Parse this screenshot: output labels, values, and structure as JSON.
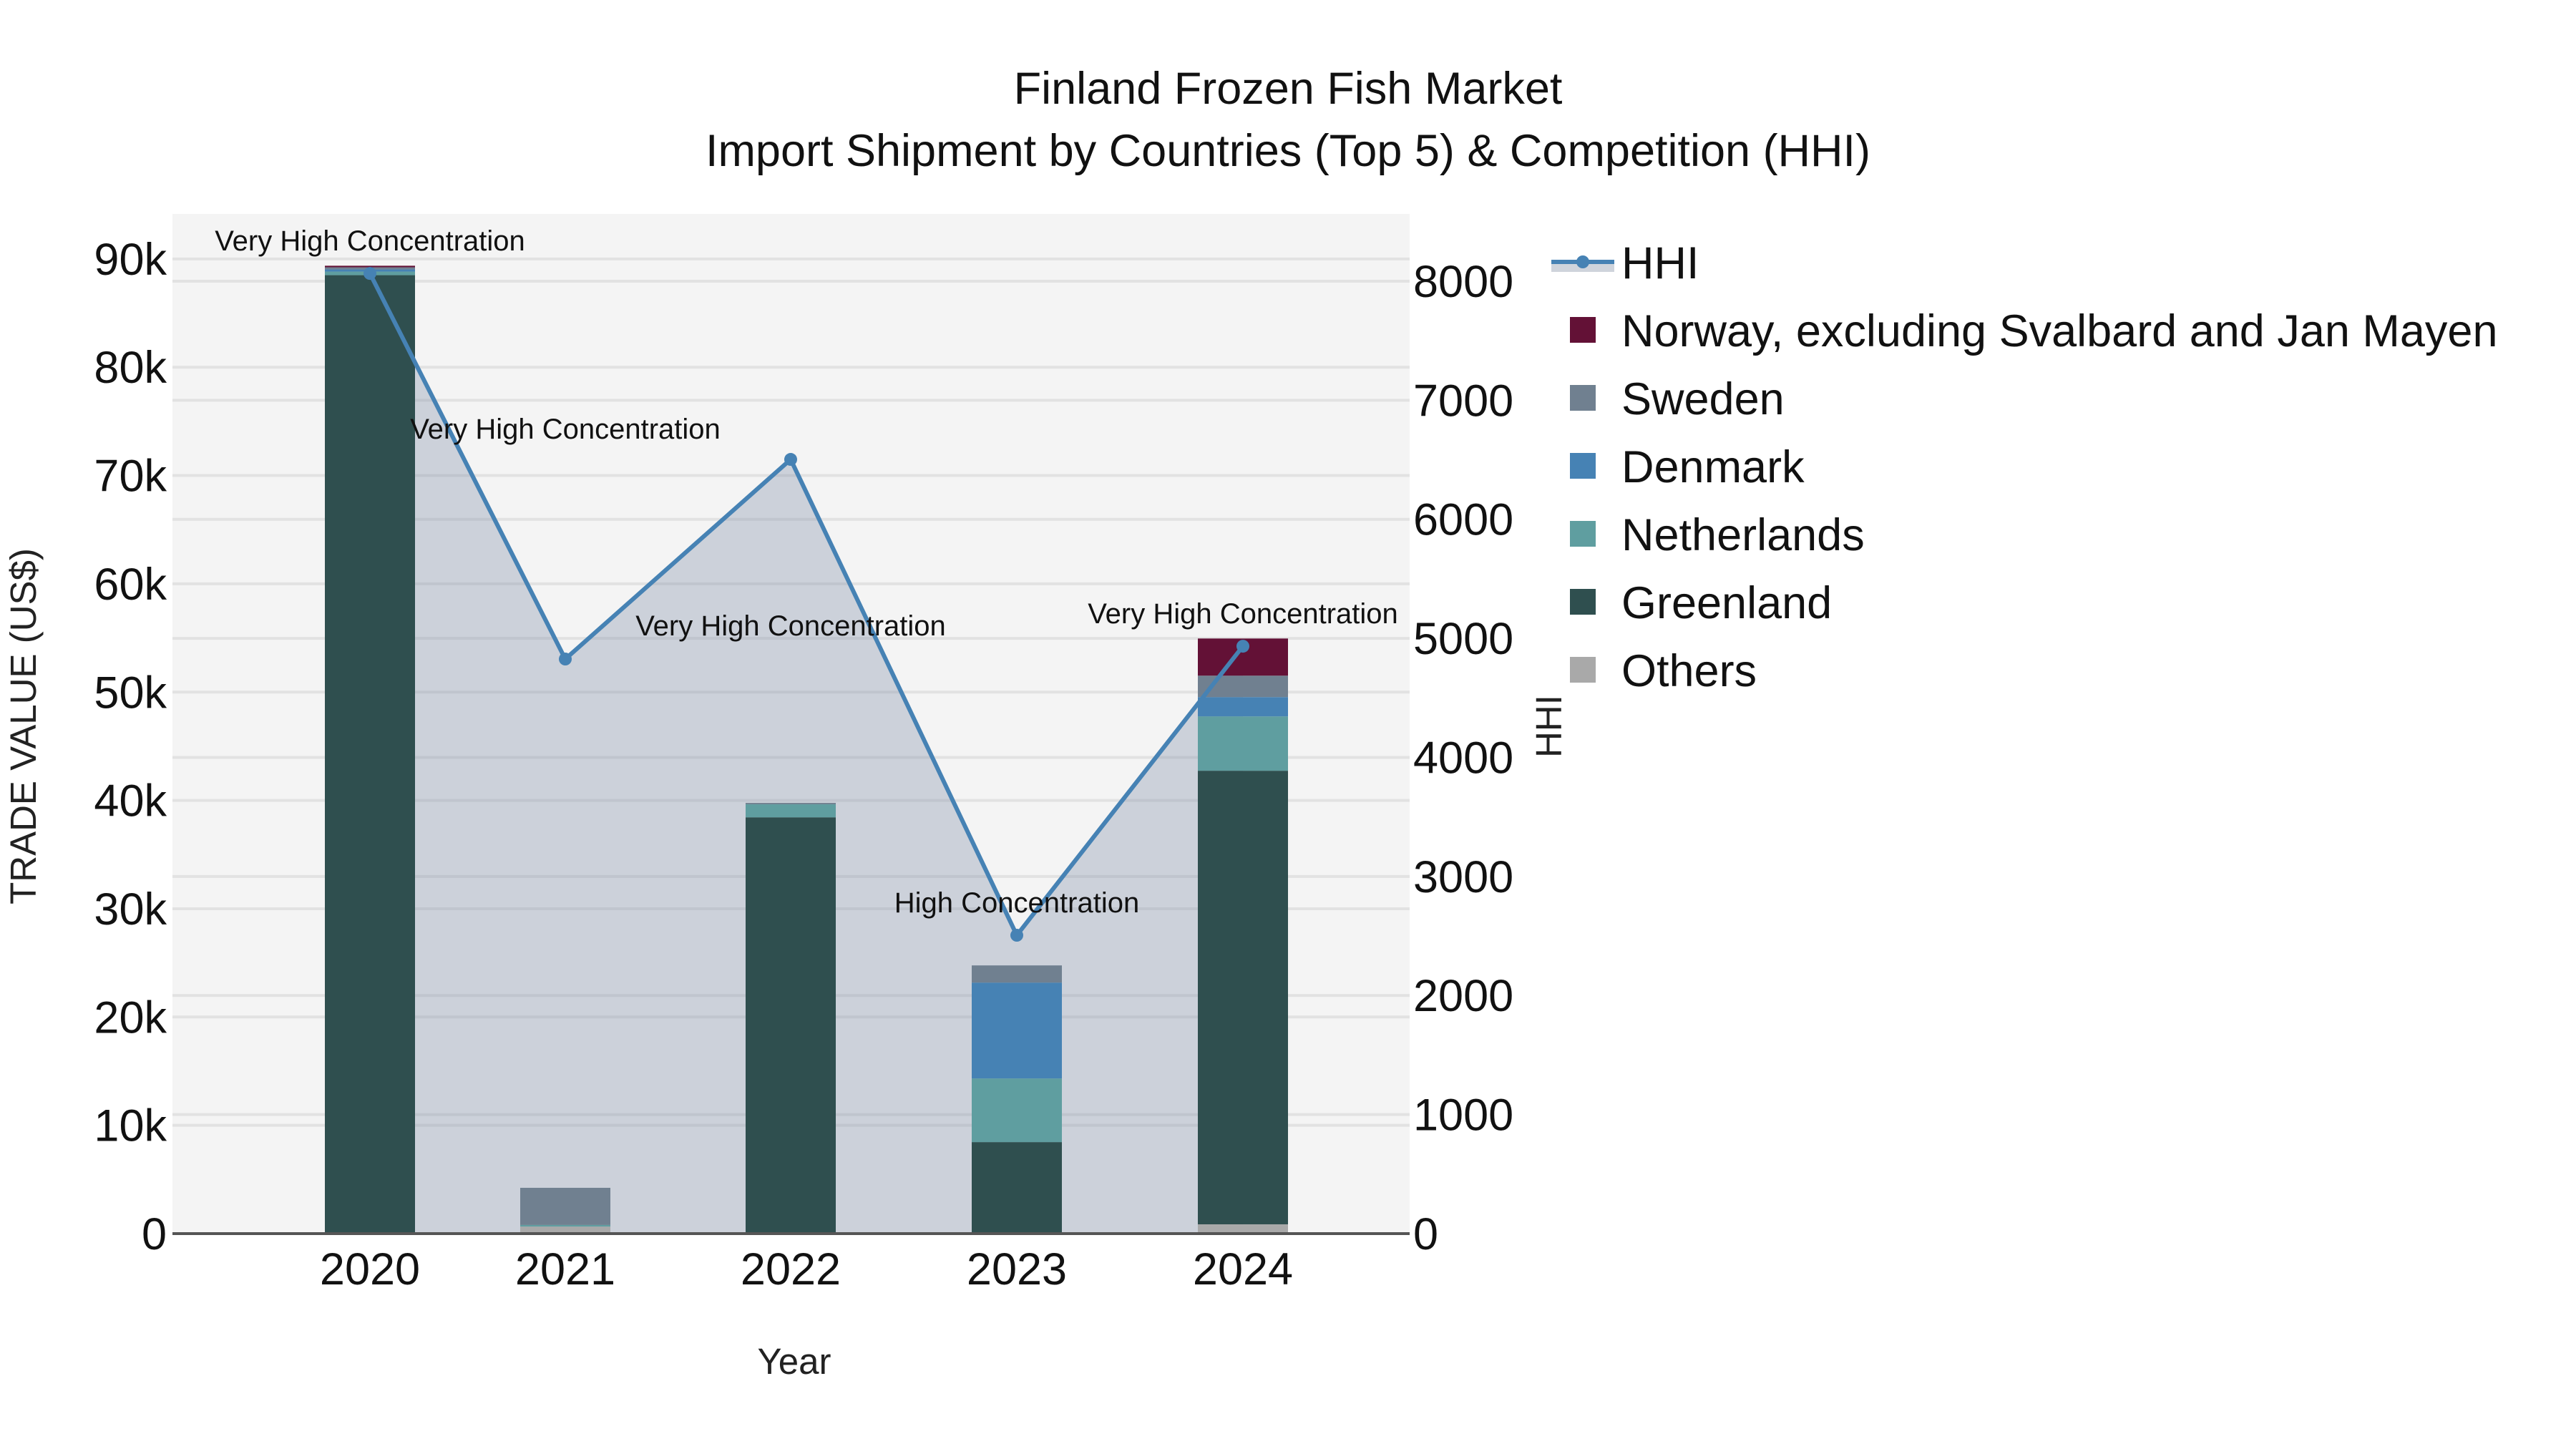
{
  "chart_data": {
    "type": "bar",
    "title": "Finland Frozen Fish Market",
    "subtitle": "Import Shipment by Countries (Top 5) & Competition (HHI)",
    "xlabel": "Year",
    "ylabel": "TRADE VALUE (US$)",
    "y2label": "HHI",
    "categories": [
      "2020",
      "2021",
      "2022",
      "2023",
      "2024"
    ],
    "ylim": [
      0,
      94000
    ],
    "y_ticks": [
      0,
      10000,
      20000,
      30000,
      40000,
      50000,
      60000,
      70000,
      80000,
      90000
    ],
    "y_tick_labels": [
      "0",
      "10k",
      "20k",
      "30k",
      "40k",
      "50k",
      "60k",
      "70k",
      "80k",
      "90k"
    ],
    "y2lim": [
      0,
      8600
    ],
    "y2_ticks": [
      0,
      1000,
      2000,
      3000,
      4000,
      5000,
      6000,
      7000,
      8000
    ],
    "y2_tick_labels": [
      "0",
      "1000",
      "2000",
      "3000",
      "4000",
      "5000",
      "6000",
      "7000",
      "8000"
    ],
    "stacked": true,
    "grid": true,
    "legend_position": "right",
    "series": [
      {
        "name": "Others",
        "color": "#a9a9a9",
        "values": [
          0,
          650,
          0,
          0,
          860
        ]
      },
      {
        "name": "Greenland",
        "color": "#2f4f4f",
        "values": [
          88500,
          0,
          38440,
          8450,
          41880
        ]
      },
      {
        "name": "Netherlands",
        "color": "#5f9ea0",
        "values": [
          330,
          150,
          1200,
          5880,
          5020
        ]
      },
      {
        "name": "Denmark",
        "color": "#4682b4",
        "values": [
          200,
          0,
          0,
          8850,
          1780
        ]
      },
      {
        "name": "Sweden",
        "color": "#708090",
        "values": [
          200,
          3430,
          130,
          1585,
          1980
        ]
      },
      {
        "name": "Norway, excluding Svalbard and Jan Mayen",
        "color": "#631136",
        "values": [
          140,
          0,
          0,
          0,
          3430
        ]
      }
    ],
    "hhi": {
      "name": "HHI",
      "color": "#4682b4",
      "axis": "y2",
      "values": [
        8065,
        4826,
        6503,
        2506,
        4934
      ],
      "annotations": [
        "Very High Concentration",
        "Very High Concentration",
        "Very High Concentration",
        "High Concentration",
        "Very High Concentration"
      ]
    }
  },
  "legend": {
    "items": [
      {
        "label": "HHI",
        "kind": "line",
        "color": "#4682b4"
      },
      {
        "label": "Norway, excluding Svalbard and Jan Mayen",
        "kind": "box",
        "color": "#631136"
      },
      {
        "label": "Sweden",
        "kind": "box",
        "color": "#708090"
      },
      {
        "label": "Denmark",
        "kind": "box",
        "color": "#4682b4"
      },
      {
        "label": "Netherlands",
        "kind": "box",
        "color": "#5f9ea0"
      },
      {
        "label": "Greenland",
        "kind": "box",
        "color": "#2f4f4f"
      },
      {
        "label": "Others",
        "kind": "box",
        "color": "#a9a9a9"
      }
    ]
  },
  "colors": {
    "plot_bg": "#f4f4f4",
    "grid": "#e2e2e2",
    "hhi_fill": "rgba(112,128,160,0.3)",
    "axis_line": "#555555"
  }
}
